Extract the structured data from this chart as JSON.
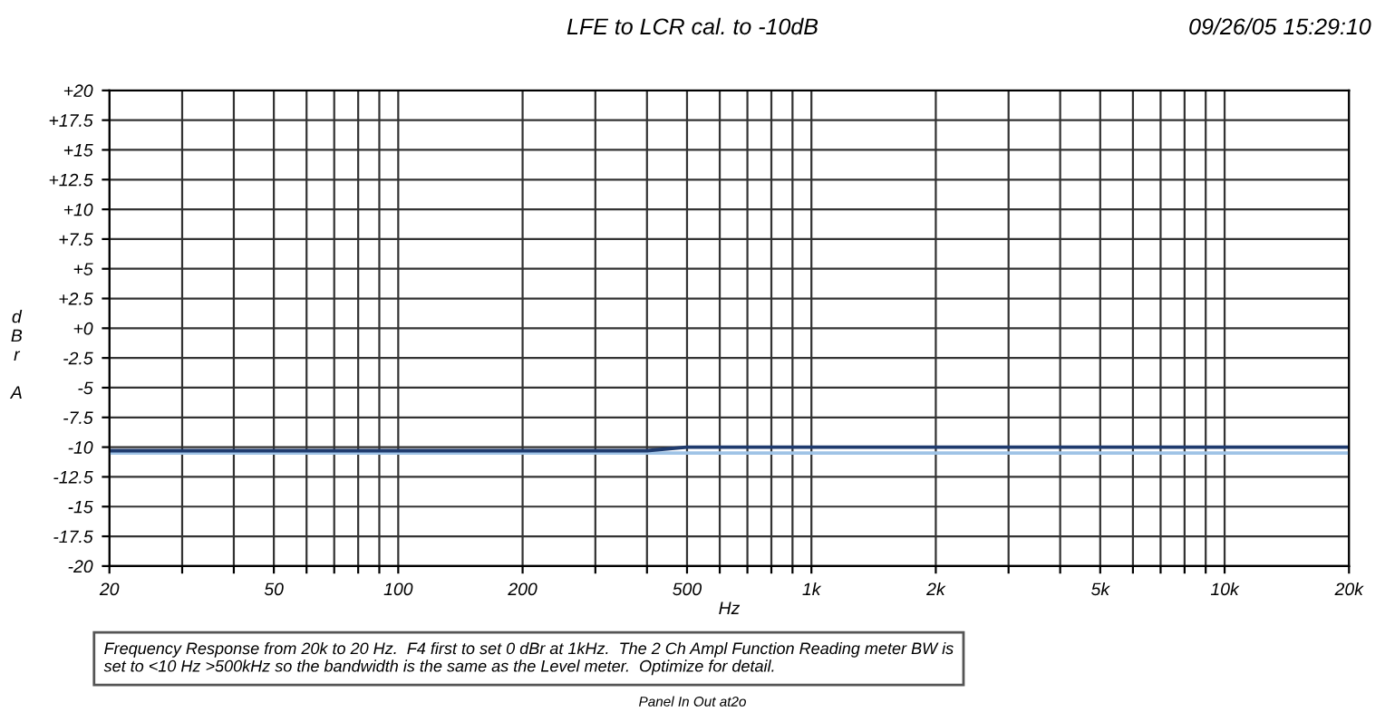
{
  "chart_data": {
    "type": "line",
    "title": "LFE to LCR cal. to -10dB",
    "subtitle": "09/26/05 15:29:10",
    "xlabel": "Hz",
    "ylabel": "dBr A",
    "annotations": [
      "Frequency Response from 20k to 20 Hz.  F4 first to set 0 dBr at 1kHz.  The 2 Ch Ampl Function Reading meter BW is\nset to <10 Hz >500kHz so the bandwidth is the same as the Level meter.  Optimize for detail.",
      "Panel In Out at2o"
    ],
    "series": [
      {
        "color": "#9fc3e6",
        "x": [
          20,
          20000
        ],
        "values": [
          -10.5,
          -10.5
        ]
      },
      {
        "color": "#1f3b6e",
        "x": [
          20,
          400,
          500,
          20000
        ],
        "values": [
          -10.3,
          -10.3,
          -10.0,
          -10.0
        ]
      }
    ],
    "log": "x",
    "xlim": [
      20,
      20000
    ],
    "xticks": [
      {
        "value": 20,
        "label": "20"
      },
      {
        "value": 30,
        "label": null
      },
      {
        "value": 40,
        "label": null
      },
      {
        "value": 50,
        "label": "50"
      },
      {
        "value": 60,
        "label": null
      },
      {
        "value": 70,
        "label": null
      },
      {
        "value": 80,
        "label": null
      },
      {
        "value": 90,
        "label": null
      },
      {
        "value": 100,
        "label": "100"
      },
      {
        "value": 200,
        "label": "200"
      },
      {
        "value": 300,
        "label": null
      },
      {
        "value": 400,
        "label": null
      },
      {
        "value": 500,
        "label": "500"
      },
      {
        "value": 600,
        "label": null
      },
      {
        "value": 700,
        "label": null
      },
      {
        "value": 800,
        "label": null
      },
      {
        "value": 900,
        "label": null
      },
      {
        "value": 1000,
        "label": "1k"
      },
      {
        "value": 2000,
        "label": "2k"
      },
      {
        "value": 3000,
        "label": null
      },
      {
        "value": 4000,
        "label": null
      },
      {
        "value": 5000,
        "label": "5k"
      },
      {
        "value": 6000,
        "label": null
      },
      {
        "value": 7000,
        "label": null
      },
      {
        "value": 8000,
        "label": null
      },
      {
        "value": 9000,
        "label": null
      },
      {
        "value": 10000,
        "label": "10k"
      },
      {
        "value": 20000,
        "label": "20k"
      }
    ],
    "ylim": [
      -20,
      20
    ],
    "yticks": [
      {
        "value": 20,
        "label": "+20"
      },
      {
        "value": 17.5,
        "label": "+17.5"
      },
      {
        "value": 15,
        "label": "+15"
      },
      {
        "value": 12.5,
        "label": "+12.5"
      },
      {
        "value": 10,
        "label": "+10"
      },
      {
        "value": 7.5,
        "label": "+7.5"
      },
      {
        "value": 5,
        "label": "+5"
      },
      {
        "value": 2.5,
        "label": "+2.5"
      },
      {
        "value": 0,
        "label": "+0"
      },
      -2.5,
      -5,
      -7.5,
      -10,
      -12.5,
      -15,
      -17.5,
      -20
    ],
    "grid": true,
    "legend": false,
    "line_style": "solid",
    "marker": "none"
  }
}
